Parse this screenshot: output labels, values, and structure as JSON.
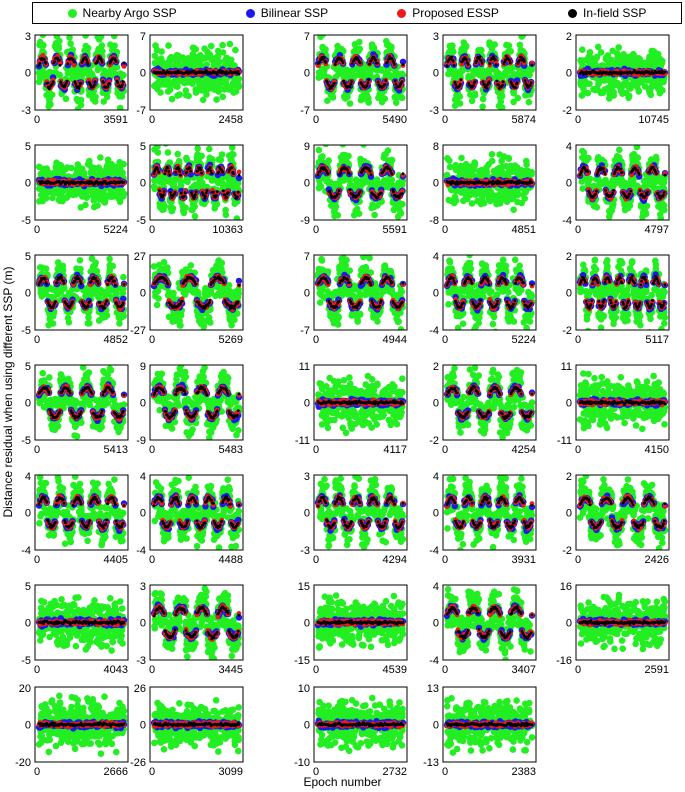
{
  "legend": {
    "items": [
      {
        "label": "Nearby Argo SSP",
        "color": "#22ee22"
      },
      {
        "label": "Bilinear SSP",
        "color": "#1a1aee"
      },
      {
        "label": "Proposed ESSP",
        "color": "#ee1a1a"
      },
      {
        "label": "In-field SSP",
        "color": "#000000"
      }
    ]
  },
  "ylabel": "Distance residual when using different SSP (m)",
  "xlabel": "Epoch number",
  "chart_data": [
    {
      "type": "scatter",
      "ylim": [
        -3,
        3
      ],
      "xlim": [
        0,
        3591
      ],
      "periods": 6
    },
    {
      "type": "scatter",
      "ylim": [
        -7,
        7
      ],
      "xlim": [
        0,
        2458
      ],
      "periods": 0
    },
    {
      "type": "scatter",
      "ylim": [
        -7,
        7
      ],
      "xlim": [
        0,
        5490
      ],
      "periods": 5
    },
    {
      "type": "scatter",
      "ylim": [
        -3,
        3
      ],
      "xlim": [
        0,
        5874
      ],
      "periods": 6
    },
    {
      "type": "scatter",
      "ylim": [
        -2,
        2
      ],
      "xlim": [
        0,
        10745
      ],
      "periods": 0
    },
    {
      "type": "scatter",
      "ylim": [
        -5,
        5
      ],
      "xlim": [
        0,
        5224
      ],
      "periods": 0
    },
    {
      "type": "scatter",
      "ylim": [
        -5,
        5
      ],
      "xlim": [
        0,
        10363
      ],
      "periods": 8
    },
    {
      "type": "scatter",
      "ylim": [
        -9,
        9
      ],
      "xlim": [
        0,
        5591
      ],
      "periods": 4
    },
    {
      "type": "scatter",
      "ylim": [
        -8,
        8
      ],
      "xlim": [
        0,
        4851
      ],
      "periods": 0
    },
    {
      "type": "scatter",
      "ylim": [
        -4,
        4
      ],
      "xlim": [
        0,
        4797
      ],
      "periods": 5
    },
    {
      "type": "scatter",
      "ylim": [
        -5,
        5
      ],
      "xlim": [
        0,
        4852
      ],
      "periods": 5
    },
    {
      "type": "scatter",
      "ylim": [
        -27,
        27
      ],
      "xlim": [
        0,
        5269
      ],
      "periods": 3
    },
    {
      "type": "scatter",
      "ylim": [
        -7,
        7
      ],
      "xlim": [
        0,
        4944
      ],
      "periods": 4
    },
    {
      "type": "scatter",
      "ylim": [
        -4,
        4
      ],
      "xlim": [
        0,
        5224
      ],
      "periods": 5
    },
    {
      "type": "scatter",
      "ylim": [
        -2,
        2
      ],
      "xlim": [
        0,
        5117
      ],
      "periods": 7
    },
    {
      "type": "scatter",
      "ylim": [
        -5,
        5
      ],
      "xlim": [
        0,
        5413
      ],
      "periods": 4
    },
    {
      "type": "scatter",
      "ylim": [
        -9,
        9
      ],
      "xlim": [
        0,
        5483
      ],
      "periods": 4
    },
    {
      "type": "scatter",
      "ylim": [
        -11,
        11
      ],
      "xlim": [
        0,
        4117
      ],
      "periods": 0
    },
    {
      "type": "scatter",
      "ylim": [
        -2,
        2
      ],
      "xlim": [
        0,
        4254
      ],
      "periods": 4
    },
    {
      "type": "scatter",
      "ylim": [
        -11,
        11
      ],
      "xlim": [
        0,
        4150
      ],
      "periods": 0
    },
    {
      "type": "scatter",
      "ylim": [
        -4,
        4
      ],
      "xlim": [
        0,
        4405
      ],
      "periods": 5
    },
    {
      "type": "scatter",
      "ylim": [
        -4,
        4
      ],
      "xlim": [
        0,
        4488
      ],
      "periods": 5
    },
    {
      "type": "scatter",
      "ylim": [
        -3,
        3
      ],
      "xlim": [
        0,
        4294
      ],
      "periods": 5
    },
    {
      "type": "scatter",
      "ylim": [
        -4,
        4
      ],
      "xlim": [
        0,
        3931
      ],
      "periods": 5
    },
    {
      "type": "scatter",
      "ylim": [
        -2,
        2
      ],
      "xlim": [
        0,
        2426
      ],
      "periods": 4
    },
    {
      "type": "scatter",
      "ylim": [
        -5,
        5
      ],
      "xlim": [
        0,
        4043
      ],
      "periods": 0
    },
    {
      "type": "scatter",
      "ylim": [
        -3,
        3
      ],
      "xlim": [
        0,
        3445
      ],
      "periods": 4
    },
    {
      "type": "scatter",
      "ylim": [
        -15,
        15
      ],
      "xlim": [
        0,
        4539
      ],
      "periods": 0
    },
    {
      "type": "scatter",
      "ylim": [
        -4,
        4
      ],
      "xlim": [
        0,
        3407
      ],
      "periods": 4
    },
    {
      "type": "scatter",
      "ylim": [
        -16,
        16
      ],
      "xlim": [
        0,
        2591
      ],
      "periods": 0
    },
    {
      "type": "scatter",
      "ylim": [
        -20,
        20
      ],
      "xlim": [
        0,
        2666
      ],
      "periods": 0
    },
    {
      "type": "scatter",
      "ylim": [
        -26,
        26
      ],
      "xlim": [
        0,
        3099
      ],
      "periods": 0
    },
    {
      "type": "scatter",
      "ylim": [
        -10,
        10
      ],
      "xlim": [
        0,
        2732
      ],
      "periods": 0
    },
    {
      "type": "scatter",
      "ylim": [
        -13,
        13
      ],
      "xlim": [
        0,
        2383
      ],
      "periods": 0
    }
  ]
}
